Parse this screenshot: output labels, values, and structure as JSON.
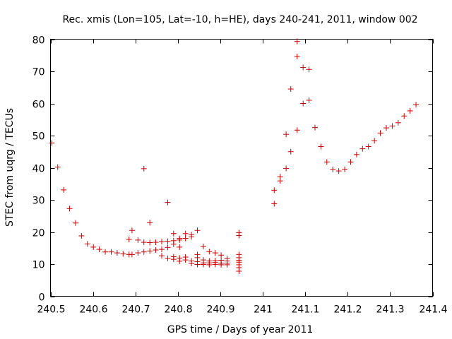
{
  "chart_data": {
    "type": "scatter",
    "title": "Rec. xmis (Lon=105, Lat=-10, h=HE), days 240-241, 2011, window 002",
    "xlabel": "GPS time / Days of year 2011",
    "ylabel": "STEC from uqrg / TECUs",
    "xlim": [
      240.5,
      241.4
    ],
    "ylim": [
      0,
      80
    ],
    "xticks": [
      240.5,
      240.6,
      240.7,
      240.8,
      240.9,
      241,
      241.1,
      241.2,
      241.3,
      241.4
    ],
    "xtick_labels": [
      "240.5",
      "240.6",
      "240.7",
      "240.8",
      "240.9",
      "241",
      "241.1",
      "241.2",
      "241.3",
      "241.4"
    ],
    "yticks": [
      0,
      10,
      20,
      30,
      40,
      50,
      60,
      70,
      80
    ],
    "ytick_labels": [
      "0",
      "10",
      "20",
      "30",
      "40",
      "50",
      "60",
      "70",
      "80"
    ],
    "grid": false,
    "marker": "plus",
    "color": "#cc0000",
    "points": [
      [
        240.503,
        47.7
      ],
      [
        240.517,
        40.2
      ],
      [
        240.531,
        33.1
      ],
      [
        240.545,
        27.3
      ],
      [
        240.559,
        22.8
      ],
      [
        240.573,
        18.8
      ],
      [
        240.587,
        16.3
      ],
      [
        240.601,
        15.3
      ],
      [
        240.615,
        14.6
      ],
      [
        240.629,
        13.8
      ],
      [
        240.643,
        13.8
      ],
      [
        240.657,
        13.5
      ],
      [
        240.671,
        13.2
      ],
      [
        240.685,
        13.0
      ],
      [
        240.685,
        17.7
      ],
      [
        240.692,
        13.0
      ],
      [
        240.692,
        20.5
      ],
      [
        240.706,
        13.5
      ],
      [
        240.706,
        17.5
      ],
      [
        240.72,
        13.8
      ],
      [
        240.72,
        16.8
      ],
      [
        240.72,
        39.7
      ],
      [
        240.734,
        14.1
      ],
      [
        240.734,
        16.7
      ],
      [
        240.734,
        22.9
      ],
      [
        240.748,
        14.4
      ],
      [
        240.748,
        16.8
      ],
      [
        240.762,
        12.6
      ],
      [
        240.762,
        14.6
      ],
      [
        240.762,
        17.0
      ],
      [
        240.776,
        11.8
      ],
      [
        240.776,
        15.2
      ],
      [
        240.776,
        17.1
      ],
      [
        240.776,
        29.2
      ],
      [
        240.79,
        11.5
      ],
      [
        240.79,
        12.3
      ],
      [
        240.79,
        16.2
      ],
      [
        240.79,
        17.3
      ],
      [
        240.79,
        19.5
      ],
      [
        240.804,
        10.9
      ],
      [
        240.804,
        11.9
      ],
      [
        240.804,
        15.3
      ],
      [
        240.804,
        17.5
      ],
      [
        240.804,
        18.0
      ],
      [
        240.818,
        11.3
      ],
      [
        240.818,
        12.2
      ],
      [
        240.818,
        18.0
      ],
      [
        240.818,
        19.5
      ],
      [
        240.832,
        10.2
      ],
      [
        240.832,
        11.0
      ],
      [
        240.832,
        18.5
      ],
      [
        240.832,
        19.2
      ],
      [
        240.846,
        9.9
      ],
      [
        240.846,
        10.8
      ],
      [
        240.846,
        12.0
      ],
      [
        240.846,
        13.0
      ],
      [
        240.846,
        20.5
      ],
      [
        240.86,
        9.9
      ],
      [
        240.86,
        10.4
      ],
      [
        240.86,
        11.3
      ],
      [
        240.86,
        15.5
      ],
      [
        240.874,
        9.8
      ],
      [
        240.874,
        10.4
      ],
      [
        240.874,
        11.0
      ],
      [
        240.874,
        13.9
      ],
      [
        240.888,
        9.9
      ],
      [
        240.888,
        10.5
      ],
      [
        240.888,
        11.1
      ],
      [
        240.888,
        13.5
      ],
      [
        240.902,
        9.8
      ],
      [
        240.902,
        10.3
      ],
      [
        240.902,
        11.2
      ],
      [
        240.902,
        12.8
      ],
      [
        240.916,
        9.8
      ],
      [
        240.916,
        10.3
      ],
      [
        240.916,
        11.0
      ],
      [
        240.916,
        11.8
      ],
      [
        240.944,
        7.8
      ],
      [
        240.944,
        8.9
      ],
      [
        240.944,
        9.8
      ],
      [
        240.944,
        10.6
      ],
      [
        240.944,
        11.2
      ],
      [
        240.944,
        12.0
      ],
      [
        240.944,
        13.0
      ],
      [
        240.944,
        18.9
      ],
      [
        240.944,
        19.8
      ],
      [
        241.027,
        28.8
      ],
      [
        241.027,
        33.0
      ],
      [
        241.041,
        35.9
      ],
      [
        241.041,
        37.2
      ],
      [
        241.055,
        39.8
      ],
      [
        241.055,
        50.4
      ],
      [
        241.066,
        45.0
      ],
      [
        241.066,
        64.5
      ],
      [
        241.081,
        51.7
      ],
      [
        241.081,
        74.6
      ],
      [
        241.081,
        79.3
      ],
      [
        241.095,
        60.0
      ],
      [
        241.095,
        71.2
      ],
      [
        241.109,
        61.0
      ],
      [
        241.109,
        70.6
      ],
      [
        241.123,
        52.5
      ],
      [
        241.137,
        46.6
      ],
      [
        241.151,
        41.8
      ],
      [
        241.165,
        39.5
      ],
      [
        241.179,
        39.0
      ],
      [
        241.193,
        39.5
      ],
      [
        241.207,
        41.8
      ],
      [
        241.221,
        44.1
      ],
      [
        241.235,
        45.9
      ],
      [
        241.249,
        46.6
      ],
      [
        241.263,
        48.4
      ],
      [
        241.277,
        50.8
      ],
      [
        241.291,
        52.4
      ],
      [
        241.305,
        53.0
      ],
      [
        241.319,
        54.0
      ],
      [
        241.333,
        56.1
      ],
      [
        241.347,
        57.7
      ],
      [
        241.361,
        59.6
      ]
    ]
  }
}
